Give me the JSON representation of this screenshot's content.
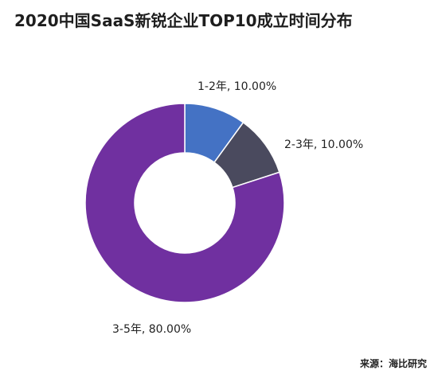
{
  "chart_data": {
    "type": "pie",
    "title": "2020中国SaaS新锐企业TOP10成立时间分布",
    "categories": [
      "1-2年",
      "2-3年",
      "3-5年"
    ],
    "values": [
      10.0,
      10.0,
      80.0
    ],
    "data_labels": [
      "1-2年, 10.00%",
      "2-3年, 10.00%",
      "3-5年, 80.00%"
    ],
    "colors": [
      "#4472c4",
      "#4a4a5e",
      "#7030a0"
    ],
    "style": "donut",
    "legend": "none"
  },
  "source": "来源：海比研究"
}
